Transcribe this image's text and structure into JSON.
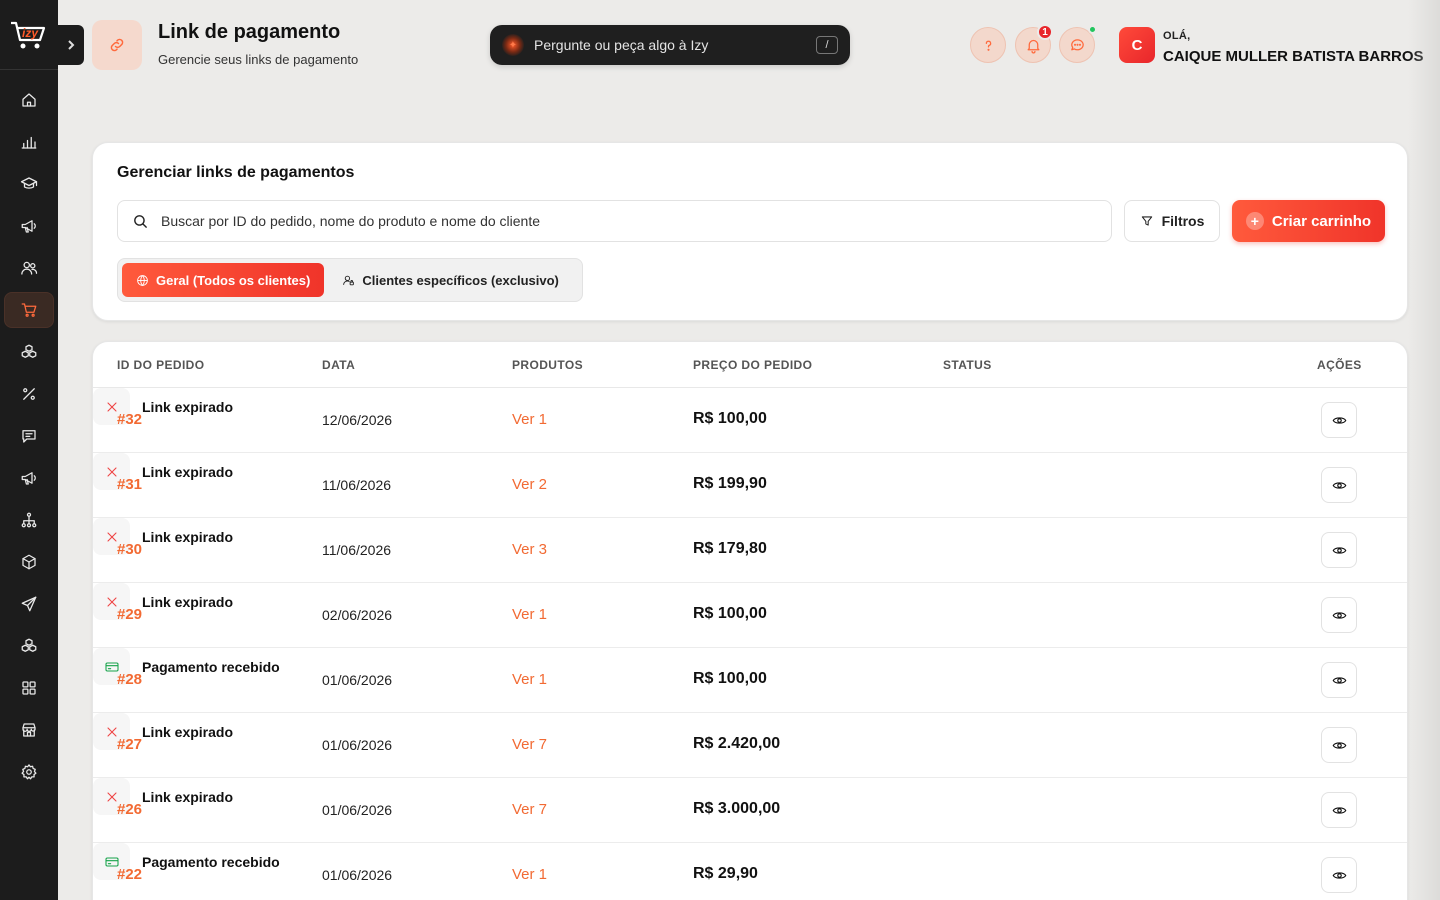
{
  "app": {
    "logo_text": "izy"
  },
  "sidebar": {
    "items": [
      {
        "icon": "home-icon",
        "active": false
      },
      {
        "icon": "bar-chart-icon",
        "active": false
      },
      {
        "icon": "graduation-cap-icon",
        "active": false
      },
      {
        "icon": "megaphone-icon",
        "active": false
      },
      {
        "icon": "users-icon",
        "active": false
      },
      {
        "icon": "shopping-cart-icon",
        "active": true
      },
      {
        "icon": "boxes-icon",
        "active": false
      },
      {
        "icon": "percent-icon",
        "active": false
      },
      {
        "icon": "message-square-icon",
        "active": false
      },
      {
        "icon": "megaphone-icon",
        "active": false
      },
      {
        "icon": "network-icon",
        "active": false
      },
      {
        "icon": "package-icon",
        "active": false
      },
      {
        "icon": "send-icon",
        "active": false
      },
      {
        "icon": "boxes-icon",
        "active": false
      },
      {
        "icon": "grid-icon",
        "active": false
      },
      {
        "icon": "store-icon",
        "active": false
      },
      {
        "icon": "settings-icon",
        "active": false
      }
    ]
  },
  "header": {
    "title": "Link de pagamento",
    "subtitle": "Gerencie seus links de pagamento",
    "ai_prompt": "Pergunte ou peça algo à Izy",
    "ai_shortcut": "/",
    "notification_count": "1",
    "greeting": "OLÁ,",
    "user_name": "CAIQUE MULLER BATISTA BARROS",
    "avatar_initial": "C"
  },
  "filters": {
    "title": "Gerenciar links de pagamentos",
    "search_placeholder": "Buscar por ID do pedido, nome do produto e nome do cliente",
    "filter_button": "Filtros",
    "create_button": "Criar carrinho",
    "segments": [
      {
        "label": "Geral (Todos os clientes)",
        "active": true
      },
      {
        "label": "Clientes específicos (exclusivo)",
        "active": false
      }
    ]
  },
  "table": {
    "columns": [
      "ID DO PEDIDO",
      "DATA",
      "PRODUTOS",
      "PREÇO DO PEDIDO",
      "STATUS",
      "AÇÕES"
    ],
    "rows": [
      {
        "id": "#32",
        "date": "12/06/2026",
        "products": "Ver 1",
        "price": "R$ 100,00",
        "status": "Link expirado",
        "status_type": "expired"
      },
      {
        "id": "#31",
        "date": "11/06/2026",
        "products": "Ver 2",
        "price": "R$ 199,90",
        "status": "Link expirado",
        "status_type": "expired"
      },
      {
        "id": "#30",
        "date": "11/06/2026",
        "products": "Ver 3",
        "price": "R$ 179,80",
        "status": "Link expirado",
        "status_type": "expired"
      },
      {
        "id": "#29",
        "date": "02/06/2026",
        "products": "Ver 1",
        "price": "R$ 100,00",
        "status": "Link expirado",
        "status_type": "expired"
      },
      {
        "id": "#28",
        "date": "01/06/2026",
        "products": "Ver 1",
        "price": "R$ 100,00",
        "status": "Pagamento recebido",
        "status_type": "paid"
      },
      {
        "id": "#27",
        "date": "01/06/2026",
        "products": "Ver 7",
        "price": "R$ 2.420,00",
        "status": "Link expirado",
        "status_type": "expired"
      },
      {
        "id": "#26",
        "date": "01/06/2026",
        "products": "Ver 7",
        "price": "R$ 3.000,00",
        "status": "Link expirado",
        "status_type": "expired"
      },
      {
        "id": "#22",
        "date": "01/06/2026",
        "products": "Ver 1",
        "price": "R$ 29,90",
        "status": "Pagamento recebido",
        "status_type": "paid"
      }
    ]
  },
  "colors": {
    "accent": "#f0342a",
    "accent_light": "#ff6a3d",
    "sidebar_bg": "#1c1c1c",
    "success": "#16a34a",
    "danger": "#ef4444"
  }
}
